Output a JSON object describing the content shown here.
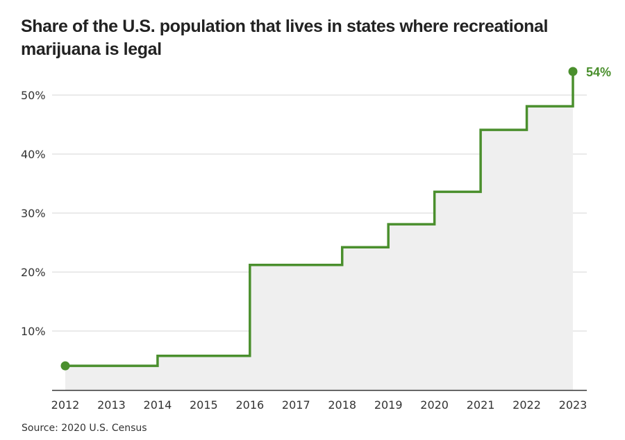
{
  "chart_data": {
    "type": "line",
    "subtype": "step",
    "title": "Share of the U.S. population that lives in states where recreational marijuana is legal",
    "xlabel": "",
    "ylabel": "",
    "x": [
      2012,
      2013,
      2014,
      2015,
      2016,
      2017,
      2018,
      2019,
      2020,
      2021,
      2022,
      2023
    ],
    "series": [
      {
        "name": "Share of U.S. population",
        "color": "#4a8f2d",
        "values": [
          4.1,
          4.1,
          5.8,
          5.8,
          21.2,
          21.2,
          24.2,
          28.1,
          33.6,
          44.1,
          48.1,
          54
        ]
      }
    ],
    "xlim": [
      2012,
      2023
    ],
    "ylim": [
      0,
      54
    ],
    "x_ticks": [
      "2012",
      "2013",
      "2014",
      "2015",
      "2016",
      "2017",
      "2018",
      "2019",
      "2020",
      "2021",
      "2022",
      "2023"
    ],
    "y_ticks": [
      {
        "value": 10,
        "label": "10%"
      },
      {
        "value": 20,
        "label": "20%"
      },
      {
        "value": 30,
        "label": "30%"
      },
      {
        "value": 40,
        "label": "40%"
      },
      {
        "value": 50,
        "label": "50%"
      }
    ],
    "grid": true,
    "area_fill_color": "#efefef",
    "end_annotation": {
      "x": 2023,
      "value": 54,
      "label": "54%"
    },
    "source": "Source: 2020 U.S. Census"
  }
}
